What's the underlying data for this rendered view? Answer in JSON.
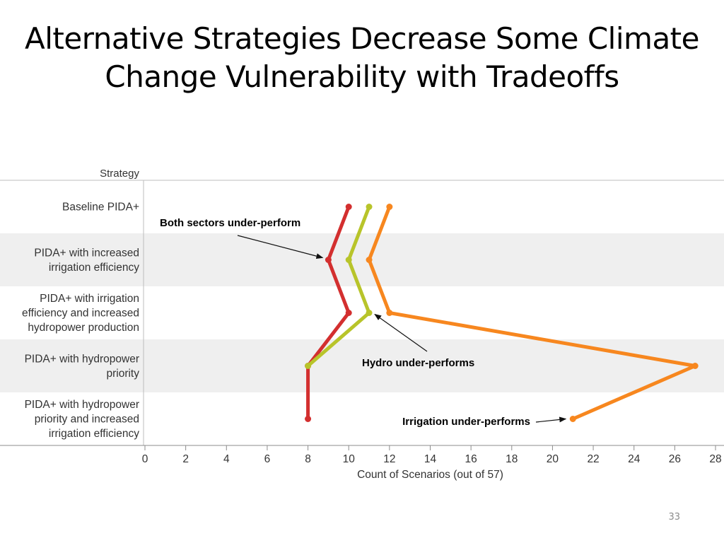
{
  "slide": {
    "title_line1": "Alternative Strategies Decrease Some Climate",
    "title_line2": "Change Vulnerability with Tradeoffs",
    "page_number": "33"
  },
  "chart_data": {
    "type": "line",
    "orientation": "horizontal",
    "yaxis_header": "Strategy",
    "xlabel": "Count of Scenarios (out of 57)",
    "xlim": [
      0,
      28
    ],
    "xticks": [
      0,
      2,
      4,
      6,
      8,
      10,
      12,
      14,
      16,
      18,
      20,
      22,
      24,
      26,
      28
    ],
    "categories": [
      [
        "Baseline PIDA+"
      ],
      [
        "PIDA+ with increased",
        "irrigation efficiency"
      ],
      [
        "PIDA+ with irrigation",
        "efficiency and increased",
        "hydropower production"
      ],
      [
        "PIDA+ with hydropower",
        "priority"
      ],
      [
        "PIDA+ with hydropower",
        "priority and increased",
        "irrigation efficiency"
      ]
    ],
    "series": [
      {
        "color": "#d32f2f",
        "values": [
          10,
          9,
          10,
          8,
          8
        ]
      },
      {
        "color": "#b8c42a",
        "values": [
          11,
          10,
          11,
          8,
          null
        ]
      },
      {
        "color": "#f7871f",
        "values": [
          12,
          11,
          12,
          27,
          21
        ]
      }
    ],
    "annotations": [
      {
        "text": "Both sectors under-perform",
        "target": [
          9,
          1
        ]
      },
      {
        "text": "Hydro under-performs",
        "target": [
          11,
          2
        ]
      },
      {
        "text": "Irrigation under-performs",
        "target": [
          21,
          4
        ]
      }
    ],
    "band_color": "#efefef",
    "grid": false
  }
}
